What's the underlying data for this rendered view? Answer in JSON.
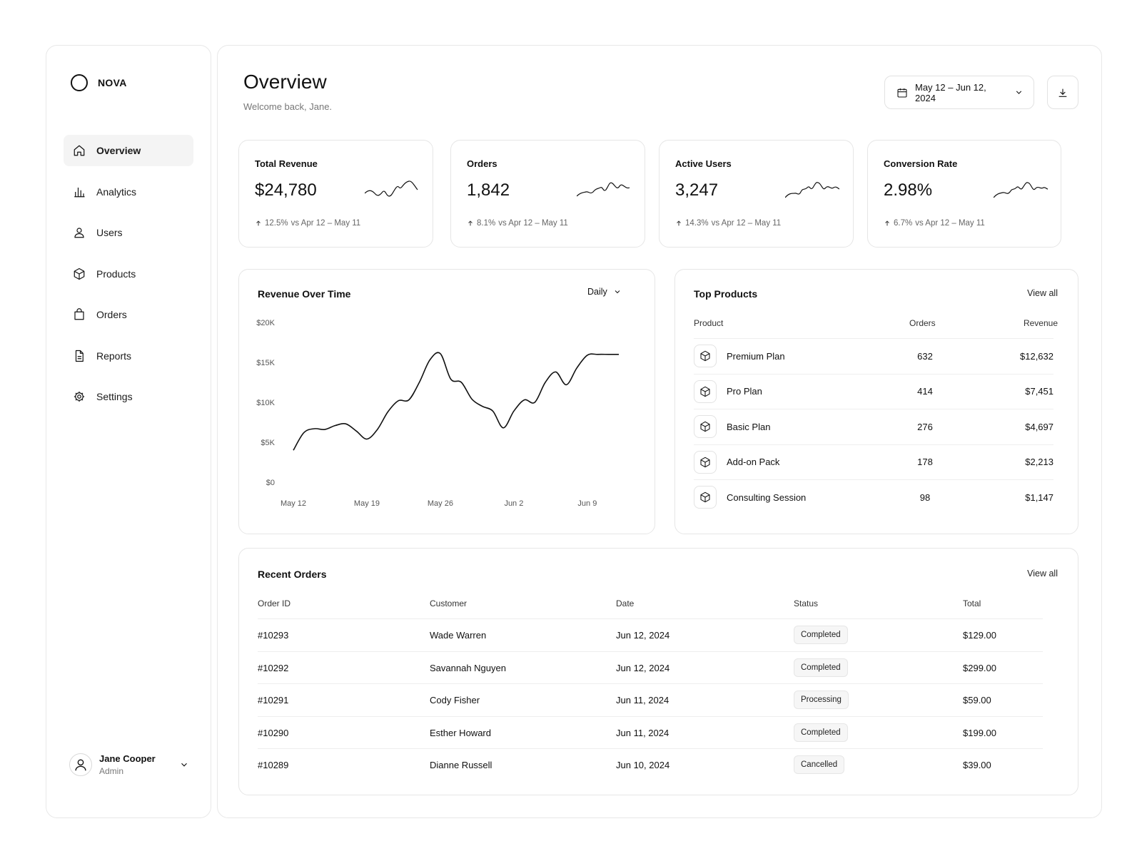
{
  "app": {
    "brand": "NOVA"
  },
  "sidebar": {
    "items": [
      {
        "label": "Overview",
        "icon": "home-icon",
        "active": true
      },
      {
        "label": "Analytics",
        "icon": "bar-chart-icon"
      },
      {
        "label": "Users",
        "icon": "user-icon"
      },
      {
        "label": "Products",
        "icon": "box-icon"
      },
      {
        "label": "Orders",
        "icon": "shopping-bag-icon"
      },
      {
        "label": "Reports",
        "icon": "document-icon"
      },
      {
        "label": "Settings",
        "icon": "gear-icon"
      }
    ],
    "user": {
      "name": "Jane Cooper",
      "role": "Admin"
    }
  },
  "header": {
    "title": "Overview",
    "subtitle": "Welcome back, Jane.",
    "date_range": "May 12 – Jun 12, 2024"
  },
  "kpis": [
    {
      "label": "Total Revenue",
      "value": "$24,780",
      "delta": "12.5%",
      "comparison": "vs Apr 12 – May 11"
    },
    {
      "label": "Orders",
      "value": "1,842",
      "delta": "8.1%",
      "comparison": "vs Apr 12 – May 11"
    },
    {
      "label": "Active Users",
      "value": "3,247",
      "delta": "14.3%",
      "comparison": "vs Apr 12 – May 11"
    },
    {
      "label": "Conversion Rate",
      "value": "2.98%",
      "delta": "6.7%",
      "comparison": "vs Apr 12 – May 11"
    }
  ],
  "revenue_chart": {
    "title": "Revenue Over Time",
    "granularity": "Daily"
  },
  "chart_data": {
    "type": "line",
    "title": "Revenue Over Time",
    "x_tick_labels": [
      "May 12",
      "May 19",
      "May 26",
      "Jun 2",
      "Jun 9"
    ],
    "y_tick_labels": [
      "$0",
      "$5K",
      "$10K",
      "$15K",
      "$20K"
    ],
    "ylim": [
      0,
      20000
    ],
    "x": [
      "May 12",
      "May 13",
      "May 14",
      "May 15",
      "May 16",
      "May 17",
      "May 18",
      "May 19",
      "May 20",
      "May 21",
      "May 22",
      "May 23",
      "May 24",
      "May 25",
      "May 26",
      "May 27",
      "May 28",
      "May 29",
      "May 30",
      "May 31",
      "Jun 1",
      "Jun 2",
      "Jun 3",
      "Jun 4",
      "Jun 5",
      "Jun 6",
      "Jun 7",
      "Jun 8",
      "Jun 9",
      "Jun 10",
      "Jun 11",
      "Jun 12"
    ],
    "values": [
      4000,
      6200,
      6700,
      6600,
      7100,
      7300,
      6400,
      5400,
      6600,
      8800,
      10200,
      10300,
      12500,
      15300,
      16100,
      12900,
      12500,
      10400,
      9500,
      8900,
      6800,
      8900,
      10300,
      10000,
      12500,
      13800,
      12200,
      14300,
      15900,
      16000,
      16000,
      16000
    ],
    "grid": false
  },
  "top_products": {
    "title": "Top Products",
    "view_all": "View all",
    "columns": [
      "Product",
      "Orders",
      "Revenue"
    ],
    "rows": [
      {
        "name": "Premium Plan",
        "orders": "632",
        "revenue": "$12,632"
      },
      {
        "name": "Pro Plan",
        "orders": "414",
        "revenue": "$7,451"
      },
      {
        "name": "Basic Plan",
        "orders": "276",
        "revenue": "$4,697"
      },
      {
        "name": "Add-on Pack",
        "orders": "178",
        "revenue": "$2,213"
      },
      {
        "name": "Consulting Session",
        "orders": "98",
        "revenue": "$1,147"
      }
    ]
  },
  "recent_orders": {
    "title": "Recent Orders",
    "view_all": "View all",
    "columns": [
      "Order ID",
      "Customer",
      "Date",
      "Status",
      "Total"
    ],
    "rows": [
      {
        "id": "#10293",
        "customer": "Wade Warren",
        "date": "Jun 12, 2024",
        "status": "Completed",
        "total": "$129.00"
      },
      {
        "id": "#10292",
        "customer": "Savannah Nguyen",
        "date": "Jun 12, 2024",
        "status": "Completed",
        "total": "$299.00"
      },
      {
        "id": "#10291",
        "customer": "Cody Fisher",
        "date": "Jun 11, 2024",
        "status": "Processing",
        "total": "$59.00"
      },
      {
        "id": "#10290",
        "customer": "Esther Howard",
        "date": "Jun 11, 2024",
        "status": "Completed",
        "total": "$199.00"
      },
      {
        "id": "#10289",
        "customer": "Dianne Russell",
        "date": "Jun 10, 2024",
        "status": "Cancelled",
        "total": "$39.00"
      }
    ]
  }
}
